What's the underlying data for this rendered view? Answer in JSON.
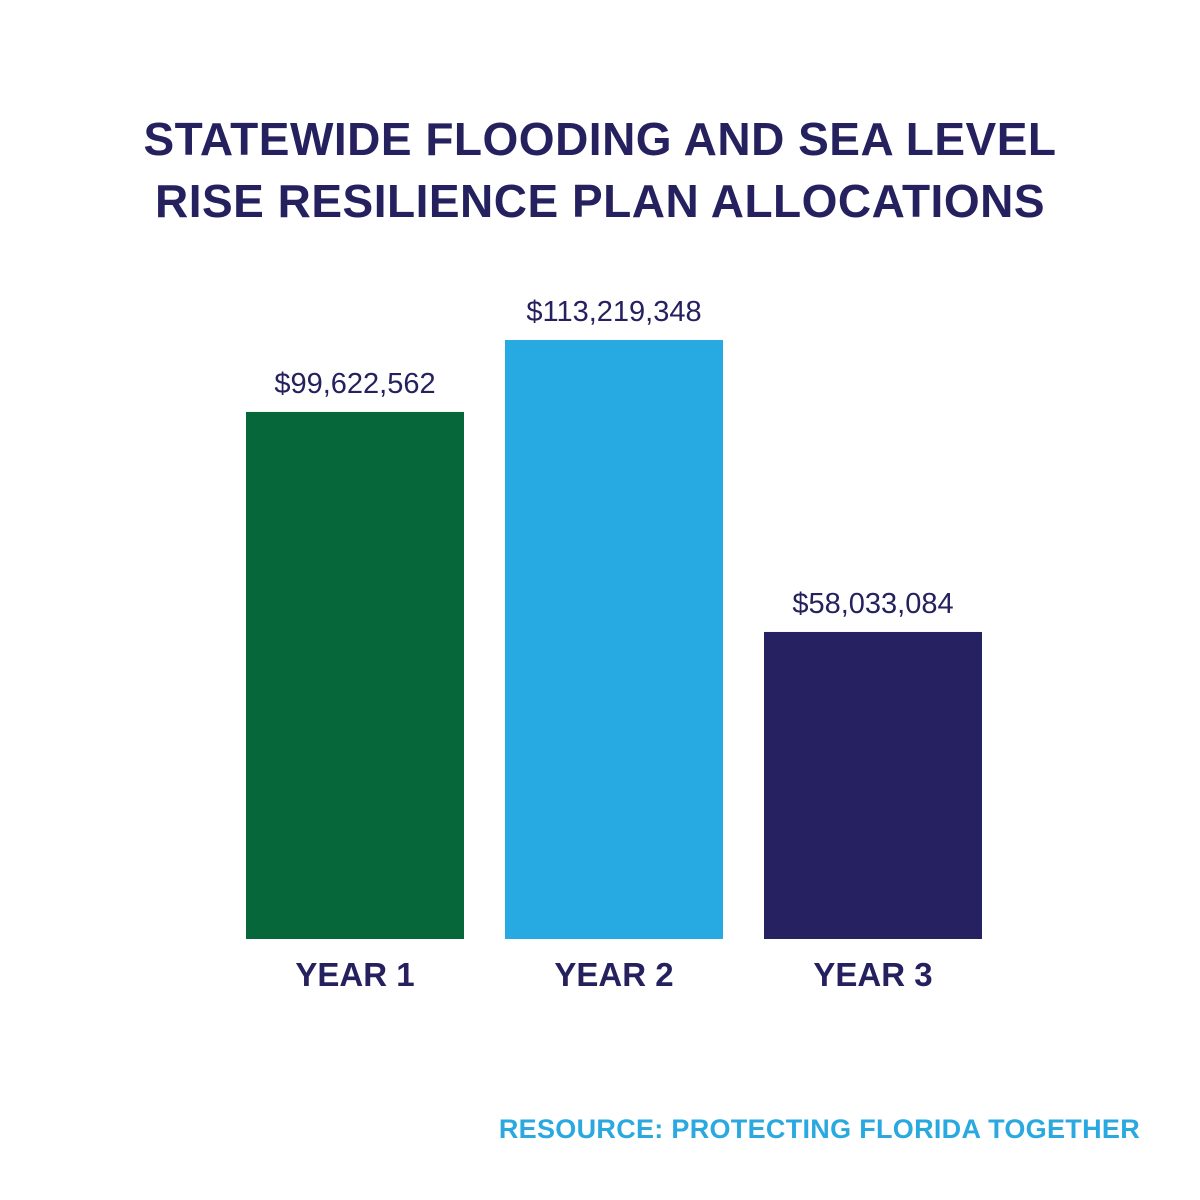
{
  "title_line1": "STATEWIDE FLOODING AND SEA LEVEL",
  "title_line2": "RISE RESILIENCE PLAN ALLOCATIONS",
  "source": "RESOURCE: PROTECTING FLORIDA TOGETHER",
  "colors": {
    "title": "#25215f",
    "source": "#29a9e0"
  },
  "chart_data": {
    "type": "bar",
    "title": "STATEWIDE FLOODING AND SEA LEVEL RISE RESILIENCE PLAN ALLOCATIONS",
    "categories": [
      "YEAR 1",
      "YEAR 2",
      "YEAR 3"
    ],
    "values": [
      99622562,
      113219348,
      58033084
    ],
    "value_labels": [
      "$99,622,562",
      "$113,219,348",
      "$58,033,084"
    ],
    "bar_colors": [
      "#06673a",
      "#27aae1",
      "#262262"
    ],
    "xlabel": "",
    "ylabel": "",
    "ylim": [
      0,
      113219348
    ],
    "grid": false,
    "legend": "none"
  }
}
